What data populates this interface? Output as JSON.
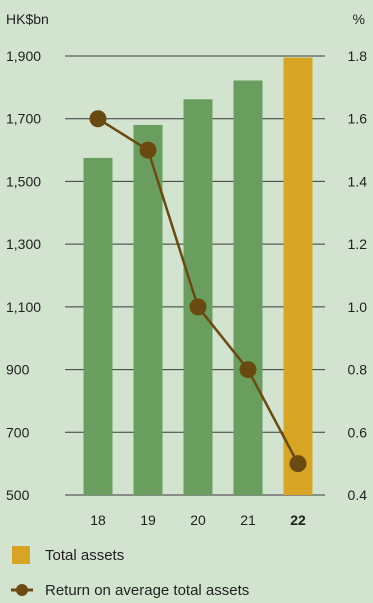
{
  "chart_data": {
    "type": "bar",
    "categories": [
      "18",
      "19",
      "20",
      "21",
      "22"
    ],
    "highlight_category": "22",
    "left_axis": {
      "unit": "HK$bn",
      "ylim": [
        500,
        1900
      ],
      "ticks": [
        "1,900",
        "1,700",
        "1,500",
        "1,300",
        "1,100",
        "900",
        "700",
        "500"
      ]
    },
    "right_axis": {
      "unit": "%",
      "ylim": [
        0.4,
        1.8
      ],
      "ticks": [
        "1.8",
        "1.6",
        "1.4",
        "1.2",
        "1.0",
        "0.8",
        "0.6",
        "0.4"
      ]
    },
    "series": [
      {
        "name": "Total assets",
        "type": "bar",
        "axis": "left",
        "values": [
          1575,
          1680,
          1762,
          1822,
          1895
        ]
      },
      {
        "name": "Return on average total assets",
        "type": "line",
        "axis": "right",
        "values": [
          1.6,
          1.5,
          1.0,
          0.8,
          0.5
        ]
      }
    ],
    "grid": true,
    "legend_position": "bottom-left"
  },
  "colors": {
    "background": "#d2e3d0",
    "bar": "#6a9e5f",
    "bar_highlight": "#d8a424",
    "line": "#6b4a12",
    "grid": "#3a3a3a"
  }
}
